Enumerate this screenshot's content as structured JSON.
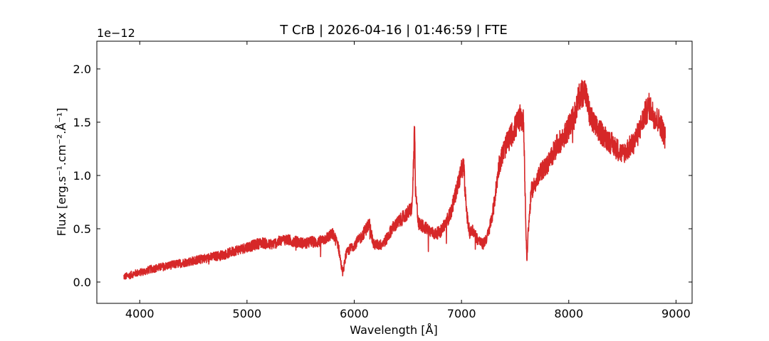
{
  "chart_data": {
    "type": "line",
    "title": "T CrB | 2026-04-16 | 01:46:59 | FTE",
    "xlabel": "Wavelength [Å]",
    "ylabel": "Flux [erg.s⁻¹.cm⁻².Å⁻¹]",
    "y_offset_text": "1e−12",
    "y_scale_factor": 1e-12,
    "xlim": [
      3600,
      9150
    ],
    "ylim": [
      -0.2,
      2.26
    ],
    "xticks": [
      4000,
      5000,
      6000,
      7000,
      8000,
      9000
    ],
    "yticks": [
      0.0,
      0.5,
      1.0,
      1.5,
      2.0
    ],
    "ytick_labels": [
      "0.0",
      "0.5",
      "1.0",
      "1.5",
      "2.0"
    ],
    "grid": false,
    "ticks_direction": "in",
    "series": [
      {
        "color": "#d62728",
        "x": [
          3850,
          3900,
          3950,
          4000,
          4050,
          4100,
          4150,
          4200,
          4250,
          4300,
          4350,
          4400,
          4450,
          4500,
          4550,
          4600,
          4650,
          4700,
          4750,
          4800,
          4850,
          4900,
          4950,
          5000,
          5050,
          5100,
          5150,
          5200,
          5250,
          5300,
          5350,
          5400,
          5450,
          5500,
          5550,
          5600,
          5650,
          5700,
          5750,
          5800,
          5850,
          5880,
          5895,
          5920,
          5950,
          6000,
          6050,
          6100,
          6140,
          6180,
          6250,
          6300,
          6350,
          6400,
          6450,
          6500,
          6540,
          6555,
          6563,
          6570,
          6600,
          6650,
          6700,
          6750,
          6800,
          6850,
          6900,
          6950,
          7000,
          7020,
          7040,
          7060,
          7080,
          7100,
          7150,
          7200,
          7250,
          7300,
          7350,
          7400,
          7450,
          7500,
          7550,
          7580,
          7600,
          7610,
          7620,
          7650,
          7700,
          7750,
          7800,
          7850,
          7900,
          7950,
          8000,
          8050,
          8100,
          8150,
          8200,
          8250,
          8300,
          8350,
          8400,
          8450,
          8500,
          8550,
          8600,
          8650,
          8700,
          8750,
          8800,
          8850,
          8900
        ],
        "values": [
          0.05,
          0.06,
          0.08,
          0.09,
          0.1,
          0.12,
          0.13,
          0.14,
          0.15,
          0.16,
          0.17,
          0.18,
          0.19,
          0.2,
          0.21,
          0.22,
          0.23,
          0.24,
          0.25,
          0.26,
          0.28,
          0.3,
          0.31,
          0.33,
          0.34,
          0.36,
          0.37,
          0.35,
          0.36,
          0.38,
          0.4,
          0.39,
          0.38,
          0.37,
          0.36,
          0.38,
          0.37,
          0.39,
          0.42,
          0.45,
          0.35,
          0.15,
          0.08,
          0.25,
          0.3,
          0.35,
          0.4,
          0.48,
          0.55,
          0.35,
          0.35,
          0.4,
          0.5,
          0.55,
          0.6,
          0.65,
          0.7,
          1.2,
          1.45,
          0.85,
          0.55,
          0.52,
          0.48,
          0.45,
          0.47,
          0.55,
          0.65,
          0.85,
          1.05,
          1.1,
          0.75,
          0.55,
          0.45,
          0.5,
          0.4,
          0.35,
          0.45,
          0.7,
          1.1,
          1.25,
          1.35,
          1.45,
          1.55,
          1.5,
          0.5,
          0.2,
          0.45,
          0.85,
          0.95,
          1.05,
          1.1,
          1.2,
          1.3,
          1.35,
          1.45,
          1.55,
          1.75,
          1.8,
          1.55,
          1.45,
          1.4,
          1.35,
          1.3,
          1.25,
          1.2,
          1.25,
          1.3,
          1.4,
          1.55,
          1.65,
          1.55,
          1.5,
          1.35
        ]
      }
    ]
  }
}
